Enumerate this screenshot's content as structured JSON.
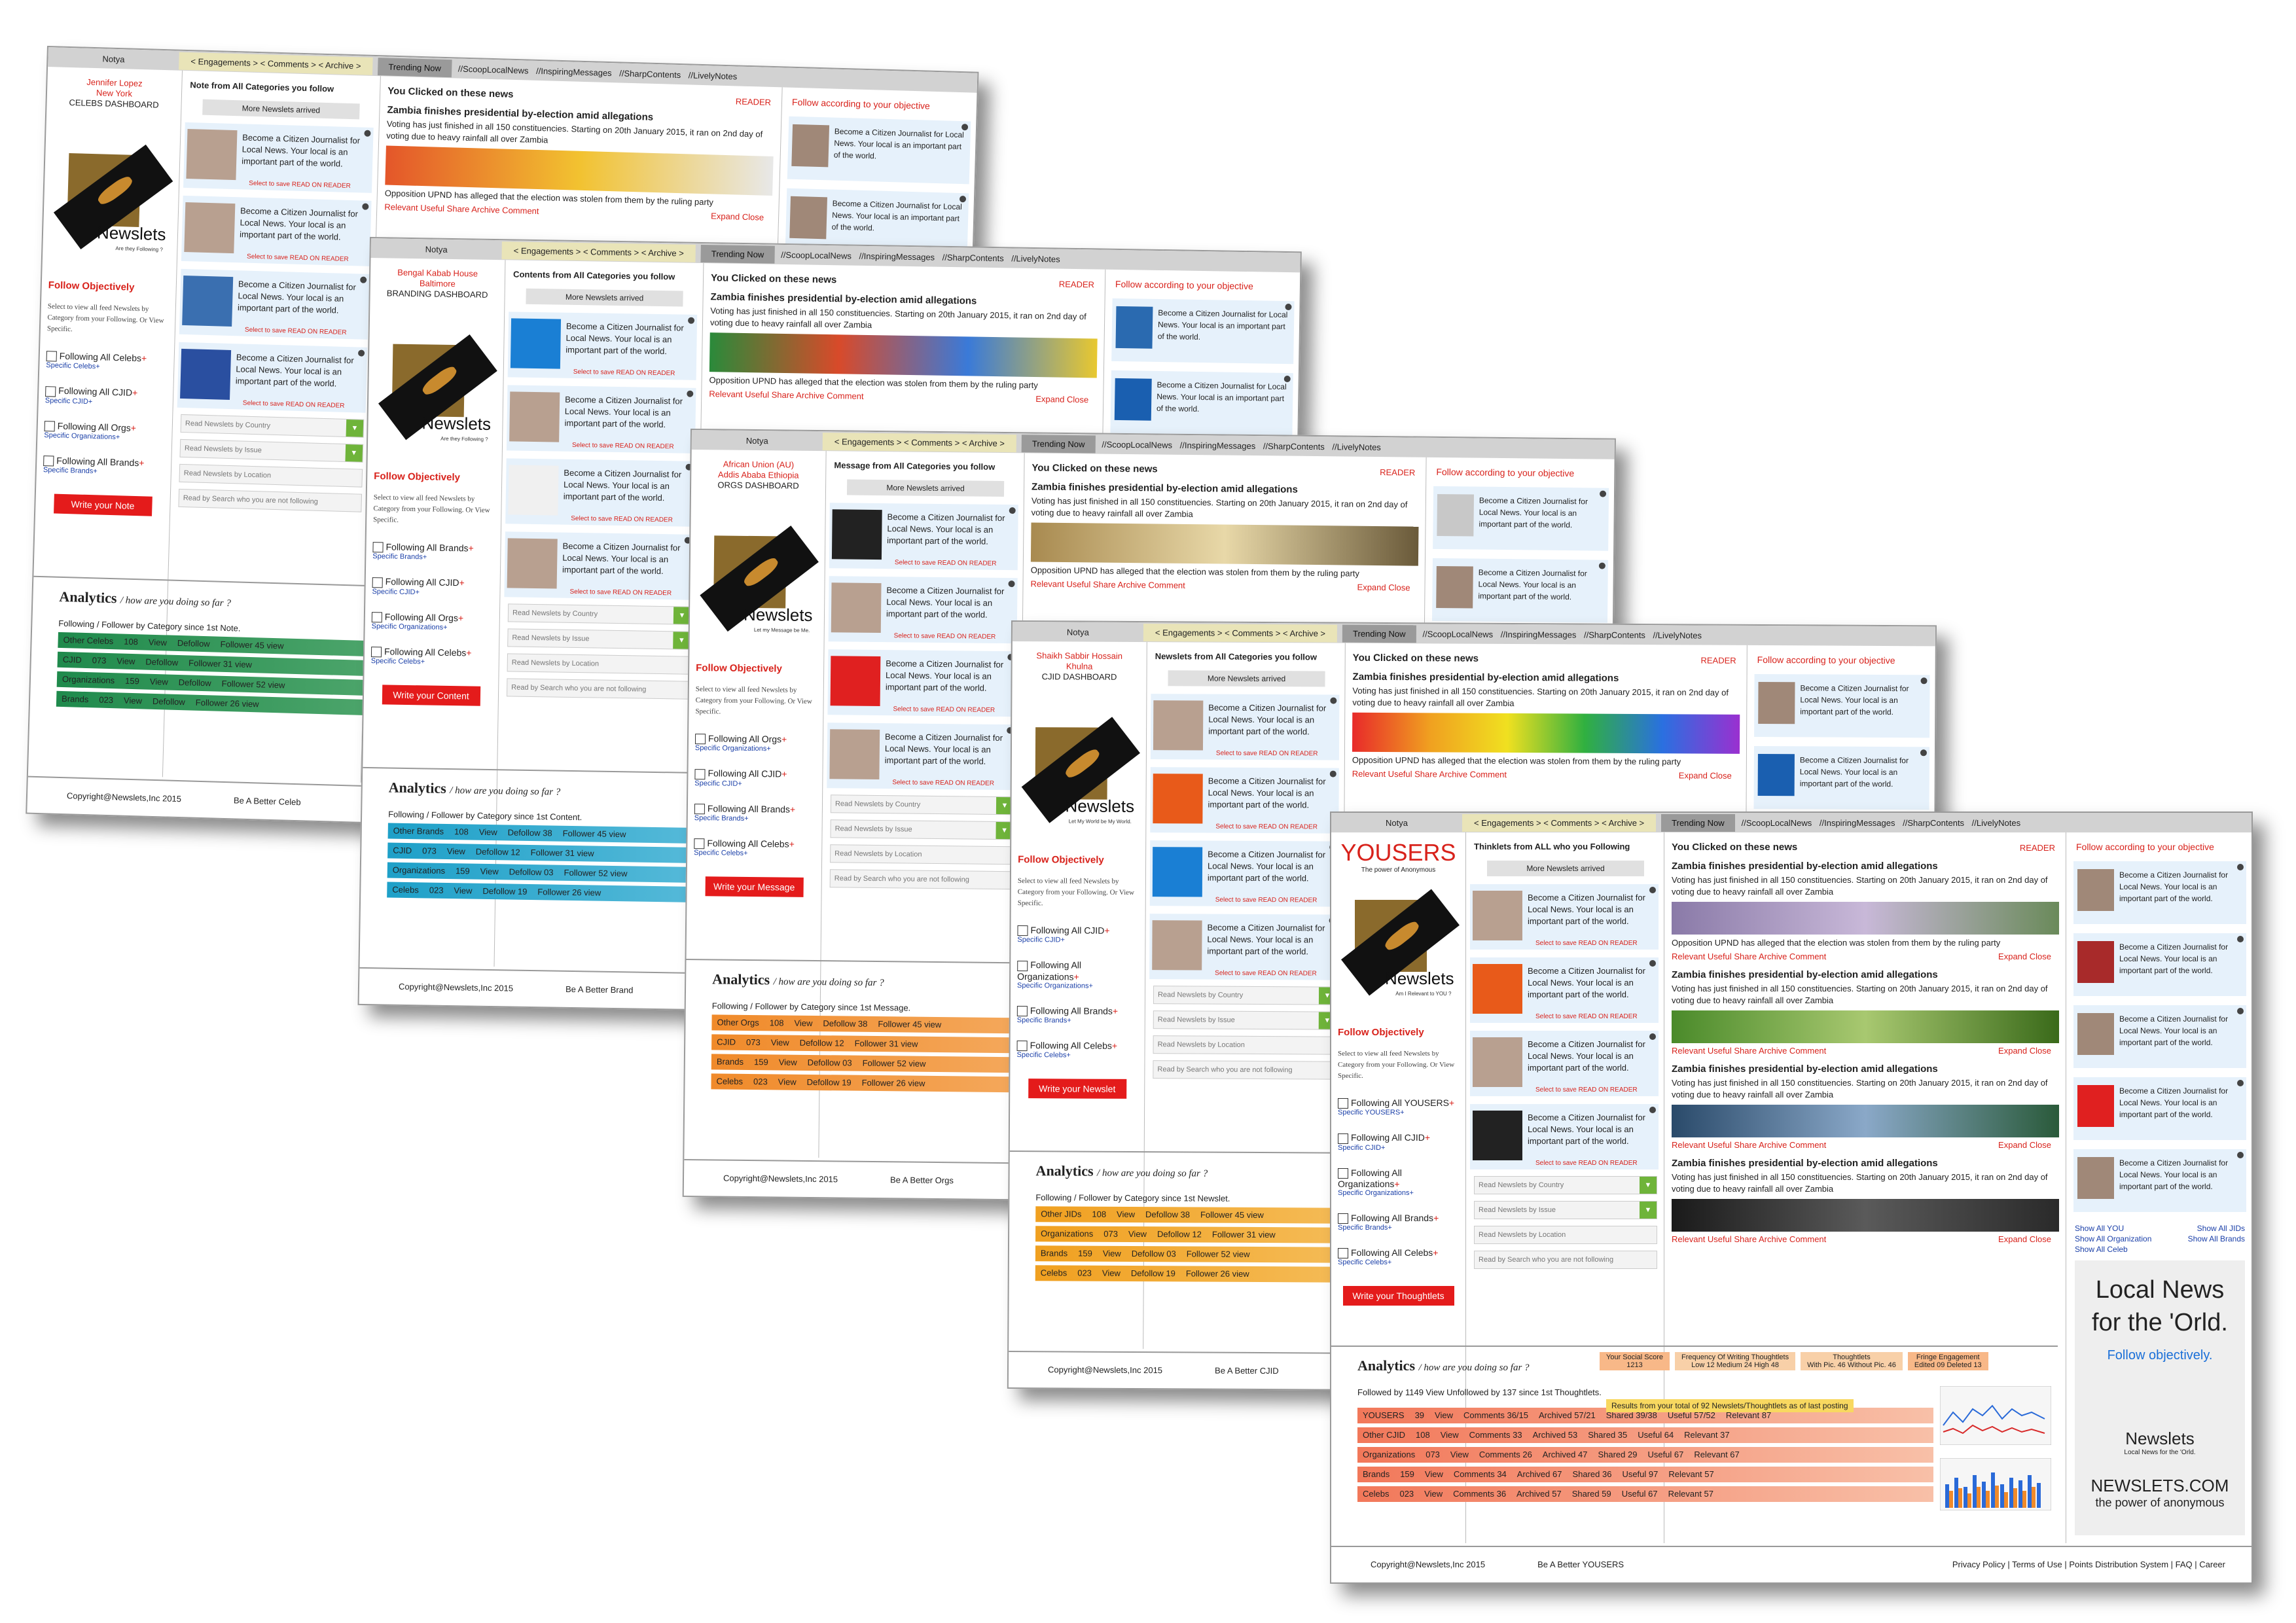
{
  "common": {
    "notya": "Notya",
    "nav": "< Engagements >  < Comments >  < Archive >",
    "trending": "Trending Now",
    "tags": "//ScoopLocalNews  //InspiringMessages  //SharpContents  //LivelyNotes",
    "more_newslets": "More Newslets arrived",
    "card_text": "Become a Citizen Journalist for Local News. Your local is an important part of the world.",
    "save_text": "Select to save READ ON READER",
    "clicked_title": "You Clicked on these news",
    "reader": "READER",
    "news_title": "Zambia finishes presidential by-election amid allegations",
    "news_body": "Voting has just finished in all 150 constituencies. Starting on 20th January 2015, it ran on 2nd day of voting due to heavy rainfall all over Zambia",
    "news_caption": "Opposition UPND has alleged that the election was stolen from them by the ruling party",
    "news_actions": "Relevant  Useful  Share  Archive  Comment",
    "expand_close": "Expand  Close",
    "follow_right": "Follow according to your objective",
    "follow_obj": "Follow Objectively",
    "follow_text": "Select to view all feed Newslets by Category from your Following. Or View Specific.",
    "sel_country": "Read Newslets by Country",
    "sel_issue": "Read Newslets by Issue",
    "sel_location": "Read Newslets by Location",
    "sel_search": "Read by Search who you are not following",
    "analytics": "Analytics",
    "analytics_q": "/ how are you doing so far ?",
    "copyright": "Copyright@Newslets,Inc 2015",
    "brand": "Newslets"
  },
  "win1": {
    "user": "Jennifer Lopez",
    "city": "New York",
    "dash": "CELEBS DASHBOARD",
    "note_head": "Note from All Categories you follow",
    "logo_tag": "Are they Following ?",
    "chk": [
      {
        "label": "Following All Celebs",
        "sub": "Specific Celebs+"
      },
      {
        "label": "Following All CJID",
        "sub": "Specific CJID+"
      },
      {
        "label": "Following All Orgs",
        "sub": "Specific Organizations+"
      },
      {
        "label": "Following All Brands",
        "sub": "Specific Brands+"
      }
    ],
    "write": "Write your Note",
    "anasub": "Following / Follower by Category since 1st Note.",
    "rows": [
      {
        "cat": "Other Celebs",
        "n": "108",
        "v": "View",
        "d": "Defollow",
        "f": "Follower 45 view"
      },
      {
        "cat": "CJID",
        "n": "073",
        "v": "View",
        "d": "Defollow",
        "f": "Follower 31 view"
      },
      {
        "cat": "Organizations",
        "n": "159",
        "v": "View",
        "d": "Defollow",
        "f": "Follower 52 view"
      },
      {
        "cat": "Brands",
        "n": "023",
        "v": "View",
        "d": "Defollow",
        "f": "Follower 26 view"
      }
    ],
    "tagline": "Be A Better Celeb"
  },
  "win2": {
    "user": "Bengal Kabab House",
    "city": "Baltimore",
    "dash": "BRANDING DASHBOARD",
    "note_head": "Contents from All Categories you follow",
    "logo_tag": "Are they Following ?",
    "chk": [
      {
        "label": "Following All Brands",
        "sub": "Specific Brands+"
      },
      {
        "label": "Following All CJID",
        "sub": "Specific CJID+"
      },
      {
        "label": "Following All Orgs",
        "sub": "Specific Organizations+"
      },
      {
        "label": "Following All Celebs",
        "sub": "Specific Celebs+"
      }
    ],
    "write": "Write your Content",
    "anasub": "Following / Follower by Category since 1st Content.",
    "rows": [
      {
        "cat": "Other Brands",
        "n": "108",
        "v": "View",
        "d": "Defollow 38",
        "f": "Follower 45 view"
      },
      {
        "cat": "CJID",
        "n": "073",
        "v": "View",
        "d": "Defollow 12",
        "f": "Follower 31 view"
      },
      {
        "cat": "Organizations",
        "n": "159",
        "v": "View",
        "d": "Defollow 03",
        "f": "Follower 52 view"
      },
      {
        "cat": "Celebs",
        "n": "023",
        "v": "View",
        "d": "Defollow 19",
        "f": "Follower 26 view"
      }
    ],
    "tagline": "Be A Better Brand"
  },
  "win3": {
    "user": "African Union (AU)",
    "city": "Addis Ababa Ethiopia",
    "dash": "ORGS DASHBOARD",
    "note_head": "Message from All Categories you follow",
    "logo_tag": "Let my Message be Me.",
    "chk": [
      {
        "label": "Following All Orgs",
        "sub": "Specific Organizations+"
      },
      {
        "label": "Following All CJID",
        "sub": "Specific CJID+"
      },
      {
        "label": "Following All Brands",
        "sub": "Specific Brands+"
      },
      {
        "label": "Following All Celebs",
        "sub": "Specific Celebs+"
      }
    ],
    "write": "Write your Message",
    "anasub": "Following / Follower by Category since 1st Message.",
    "rows": [
      {
        "cat": "Other Orgs",
        "n": "108",
        "v": "View",
        "d": "Defollow 38",
        "f": "Follower 45 view"
      },
      {
        "cat": "CJID",
        "n": "073",
        "v": "View",
        "d": "Defollow 12",
        "f": "Follower 31 view"
      },
      {
        "cat": "Brands",
        "n": "159",
        "v": "View",
        "d": "Defollow 03",
        "f": "Follower 52 view"
      },
      {
        "cat": "Celebs",
        "n": "023",
        "v": "View",
        "d": "Defollow 19",
        "f": "Follower 26 view"
      }
    ],
    "tagline": "Be A Better Orgs"
  },
  "win4": {
    "user": "Shaikh Sabbir Hossain",
    "city": "Khulna",
    "dash": "CJID DASHBOARD",
    "note_head": "Newslets from All Categories you follow",
    "logo_tag": "Let My World be My World.",
    "chk": [
      {
        "label": "Following All CJID",
        "sub": "Specific CJID+"
      },
      {
        "label": "Following All Organizations",
        "sub": "Specific Organizations+"
      },
      {
        "label": "Following All Brands",
        "sub": "Specific Brands+"
      },
      {
        "label": "Following All Celebs",
        "sub": "Specific Celebs+"
      }
    ],
    "write": "Write your Newslet",
    "anasub": "Following / Follower by Category since 1st Newslet.",
    "rows": [
      {
        "cat": "Other JIDs",
        "n": "108",
        "v": "View",
        "d": "Defollow 38",
        "f": "Follower 45 view"
      },
      {
        "cat": "Organizations",
        "n": "073",
        "v": "View",
        "d": "Defollow 12",
        "f": "Follower 31 view"
      },
      {
        "cat": "Brands",
        "n": "159",
        "v": "View",
        "d": "Defollow 03",
        "f": "Follower 52 view"
      },
      {
        "cat": "Celebs",
        "n": "023",
        "v": "View",
        "d": "Defollow 19",
        "f": "Follower 26 view"
      }
    ],
    "tagline": "Be A Better CJID"
  },
  "win5": {
    "user": "YOUSERS",
    "city": "The power of Anonymous",
    "dash": "",
    "note_head": "Thinklets from ALL who you Following",
    "tags": "//ScoopLocalNews  //InspiringMessages  //SharpContents  //LivelyNotes",
    "logo_tag": "Am I Relevant to YOU ?",
    "chk": [
      {
        "label": "Following All YOUSERS",
        "sub": "Specific YOUSERS+"
      },
      {
        "label": "Following All CJID",
        "sub": "Specific CJID+"
      },
      {
        "label": "Following All Organizations",
        "sub": "Specific Organizations+"
      },
      {
        "label": "Following All Brands",
        "sub": "Specific Brands+"
      },
      {
        "label": "Following All Celebs",
        "sub": "Specific Celebs+"
      }
    ],
    "write": "Write your Thoughtlets",
    "anasub": "Followed by 1149 View Unfollowed by 137 since 1st Thoughtlets.",
    "results": "Results from your total of 92 Newslets/Thoughtlets as of last posting",
    "stats": [
      {
        "t": "Your Social Score",
        "v": "1213"
      },
      {
        "t": "Frequency Of Writing Thoughtlets",
        "v": "Low 12  Medium 24  High 48"
      },
      {
        "t": "Thoughtlets",
        "v": "With Pic. 46  Without Pic. 46"
      },
      {
        "t": "Fringe Engagement",
        "v": "Edited 09  Deleted 13"
      }
    ],
    "rows": [
      {
        "cat": "YOUSERS",
        "n": "39",
        "v": "View",
        "c": "Comments 36/15",
        "a": "Archived 57/21",
        "s": "Shared 39/38",
        "u": "Useful 57/52",
        "r": "Relevant 87"
      },
      {
        "cat": "Other CJID",
        "n": "108",
        "v": "View",
        "c": "Comments 33",
        "a": "Archived 53",
        "s": "Shared 35",
        "u": "Useful 64",
        "r": "Relevant 37"
      },
      {
        "cat": "Organizations",
        "n": "073",
        "v": "View",
        "c": "Comments 26",
        "a": "Archived 47",
        "s": "Shared 29",
        "u": "Useful 67",
        "r": "Relevant 67"
      },
      {
        "cat": "Brands",
        "n": "159",
        "v": "View",
        "c": "Comments 34",
        "a": "Archived 67",
        "s": "Shared 36",
        "u": "Useful 97",
        "r": "Relevant 57"
      },
      {
        "cat": "Celebs",
        "n": "023",
        "v": "View",
        "c": "Comments 36",
        "a": "Archived 57",
        "s": "Shared 59",
        "u": "Useful 67",
        "r": "Relevant 57"
      }
    ],
    "show_links": [
      "Show All YOU",
      "Show All JIDs",
      "Show All Organization",
      "Show All Brands",
      "Show All Celeb"
    ],
    "ad": {
      "l1": "Local News",
      "l1b": "for the 'Orld.",
      "l2": "Follow objectively.",
      "l3": "Newslets",
      "l3b": "Local News for the 'Orld.",
      "l4": "NEWSLETS.COM",
      "l5": "the power of anonymous"
    },
    "tagline": "Be A Better YOUSERS",
    "links": "Privacy Policy | Terms of Use | Points Distribution System | FAQ | Career"
  },
  "colors": {
    "red": "#d8221b",
    "green1": "#1f8a4c",
    "blue1": "#1ea0c8",
    "orange1": "#f08a2a",
    "salmon": "#f2785a"
  }
}
